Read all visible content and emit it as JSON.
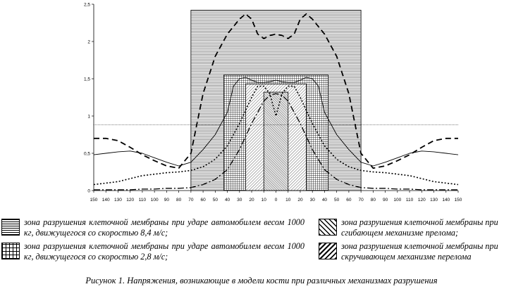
{
  "chart_data": {
    "type": "line",
    "x_ticks": [
      "150",
      "140",
      "130",
      "120",
      "110",
      "100",
      "90",
      "80",
      "70",
      "60",
      "50",
      "40",
      "30",
      "20",
      "10",
      "0",
      "10",
      "20",
      "30",
      "40",
      "50",
      "60",
      "70",
      "80",
      "90",
      "100",
      "110",
      "120",
      "130",
      "140",
      "150"
    ],
    "y_ticks": [
      "0",
      "0,5",
      "1",
      "1,5",
      "2",
      "2,5"
    ],
    "ylim": [
      0,
      2.5
    ],
    "xlim": [
      -150,
      150
    ],
    "reference_line": 0.88,
    "zones": [
      {
        "id": "z1",
        "x0": -70,
        "x1": 70,
        "height": 2.42,
        "pattern": "horizontal-lines"
      },
      {
        "id": "z2",
        "x0": -43,
        "x1": 43,
        "height": 1.55,
        "pattern": "grid"
      },
      {
        "id": "z3",
        "x0": -25,
        "x1": 25,
        "height": 1.43,
        "pattern": "diagonal-lines"
      },
      {
        "id": "z4",
        "x0": -10,
        "x1": 10,
        "height": 1.32,
        "pattern": "diagonal-lines"
      }
    ],
    "series": [
      {
        "style": "long-dash",
        "x": [
          -150,
          -140,
          -130,
          -120,
          -110,
          -100,
          -90,
          -80,
          -70,
          -65,
          -60,
          -50,
          -40,
          -30,
          -25,
          -20,
          -15,
          -10,
          -5,
          0,
          5,
          10,
          15,
          20,
          25,
          30,
          40,
          50,
          60,
          65,
          70,
          80,
          90,
          100,
          110,
          120,
          130,
          140,
          150
        ],
        "y": [
          0.7,
          0.7,
          0.67,
          0.58,
          0.48,
          0.4,
          0.33,
          0.3,
          0.5,
          0.9,
          1.3,
          1.8,
          2.1,
          2.3,
          2.37,
          2.3,
          2.1,
          2.04,
          2.08,
          2.1,
          2.08,
          2.04,
          2.1,
          2.3,
          2.37,
          2.3,
          2.1,
          1.8,
          1.3,
          0.9,
          0.5,
          0.3,
          0.33,
          0.4,
          0.48,
          0.58,
          0.67,
          0.7,
          0.7
        ]
      },
      {
        "style": "solid",
        "x": [
          -150,
          -140,
          -130,
          -120,
          -110,
          -100,
          -90,
          -80,
          -70,
          -60,
          -50,
          -40,
          -35,
          -30,
          -25,
          -20,
          -15,
          -10,
          -5,
          0,
          5,
          10,
          15,
          20,
          25,
          30,
          35,
          40,
          50,
          60,
          70,
          80,
          90,
          100,
          110,
          120,
          130,
          140,
          150
        ],
        "y": [
          0.48,
          0.5,
          0.52,
          0.53,
          0.5,
          0.44,
          0.38,
          0.33,
          0.38,
          0.55,
          0.75,
          1.05,
          1.4,
          1.5,
          1.52,
          1.48,
          1.45,
          1.45,
          1.46,
          1.48,
          1.46,
          1.45,
          1.45,
          1.48,
          1.52,
          1.5,
          1.4,
          1.05,
          0.75,
          0.55,
          0.38,
          0.33,
          0.38,
          0.44,
          0.5,
          0.53,
          0.52,
          0.5,
          0.48
        ]
      },
      {
        "style": "dotted",
        "x": [
          -150,
          -140,
          -130,
          -120,
          -110,
          -100,
          -90,
          -80,
          -70,
          -60,
          -50,
          -40,
          -30,
          -20,
          -15,
          -10,
          -5,
          0,
          5,
          10,
          15,
          20,
          30,
          40,
          50,
          60,
          70,
          80,
          90,
          100,
          110,
          120,
          130,
          140,
          150
        ],
        "y": [
          0.08,
          0.1,
          0.12,
          0.16,
          0.2,
          0.22,
          0.24,
          0.25,
          0.27,
          0.32,
          0.42,
          0.6,
          0.9,
          1.25,
          1.4,
          1.4,
          1.3,
          1.0,
          1.3,
          1.4,
          1.4,
          1.25,
          0.9,
          0.6,
          0.42,
          0.32,
          0.27,
          0.25,
          0.24,
          0.22,
          0.2,
          0.16,
          0.12,
          0.1,
          0.08
        ]
      },
      {
        "style": "dash-dot",
        "x": [
          -150,
          -140,
          -130,
          -120,
          -110,
          -100,
          -90,
          -80,
          -70,
          -60,
          -50,
          -40,
          -30,
          -20,
          -10,
          -5,
          0,
          5,
          10,
          20,
          30,
          40,
          50,
          60,
          70,
          80,
          90,
          100,
          110,
          120,
          130,
          140,
          150
        ],
        "y": [
          0.01,
          0.01,
          0.01,
          0.01,
          0.02,
          0.02,
          0.03,
          0.03,
          0.04,
          0.08,
          0.15,
          0.28,
          0.55,
          0.9,
          1.2,
          1.28,
          1.3,
          1.28,
          1.2,
          0.9,
          0.55,
          0.28,
          0.15,
          0.08,
          0.04,
          0.03,
          0.03,
          0.02,
          0.02,
          0.01,
          0.01,
          0.01,
          0.01
        ]
      }
    ]
  },
  "legend": [
    {
      "text": "зона разрушения клеточной мембраны при ударе автомобилем весом 1000 кг, движущегося со скоростью 8,4 м/с;",
      "pattern": "horizontal-lines"
    },
    {
      "text": "зона разрушения клеточной мембраны при ударе автомобилем весом 1000 кг, движущегося со скоростью 2,8 м/с;",
      "pattern": "grid"
    },
    {
      "text": "зона разрушения клеточной мембраны при сгибающем механизме прелома;",
      "pattern": "diagonal-lines"
    },
    {
      "text": "зона разрушения клеточной мембраны при скручивающем механизме перелома",
      "pattern": "diagonal-lines"
    }
  ],
  "caption": "Рисунок 1. Напряжения, возникающие в модели кости при различных механизмах разрушения"
}
